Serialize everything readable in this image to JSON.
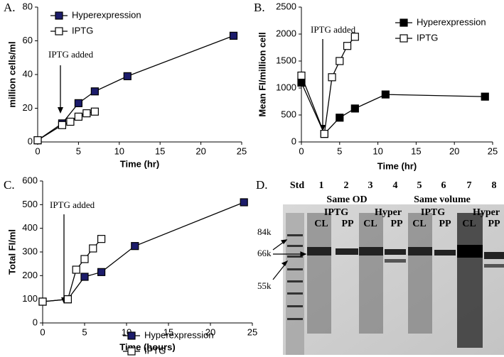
{
  "chart_data": [
    {
      "type": "line",
      "label": "A.",
      "xlabel": "Time (hr)",
      "ylabel": "million cells/ml",
      "annotation": "IPTG added",
      "xlim": [
        0,
        25
      ],
      "xticks": [
        0,
        5,
        10,
        15,
        20,
        25
      ],
      "ylim": [
        0,
        80
      ],
      "yticks": [
        0,
        20,
        40,
        60,
        80
      ],
      "legend": "upper-left",
      "series": [
        {
          "name": "Hyperexpression",
          "color": "#1c1c6b",
          "x": [
            0,
            3,
            5,
            7,
            11,
            24
          ],
          "values": [
            1,
            11,
            23,
            30,
            39,
            63
          ]
        },
        {
          "name": "IPTG",
          "color": "#ffffff",
          "x": [
            0,
            3,
            4,
            5,
            6,
            7
          ],
          "values": [
            1,
            10,
            12,
            15,
            17,
            18
          ]
        }
      ]
    },
    {
      "type": "line",
      "label": "B.",
      "xlabel": "Time (hr)",
      "ylabel": "Mean FI/million cell",
      "annotation": "IPTG added",
      "xlim": [
        0,
        25
      ],
      "xticks": [
        0,
        5,
        10,
        15,
        20,
        25
      ],
      "ylim": [
        0,
        2500
      ],
      "yticks": [
        0,
        500,
        1000,
        1500,
        2000,
        2500
      ],
      "legend": "upper-right",
      "series": [
        {
          "name": "Hyperexpression",
          "color": "#000000",
          "x": [
            0,
            3,
            5,
            7,
            11,
            24
          ],
          "values": [
            1100,
            150,
            450,
            620,
            880,
            840
          ]
        },
        {
          "name": "IPTG",
          "color": "#ffffff",
          "x": [
            0,
            3,
            4,
            5,
            6,
            7
          ],
          "values": [
            1230,
            150,
            1200,
            1500,
            1780,
            1950
          ]
        }
      ]
    },
    {
      "type": "line",
      "label": "C.",
      "xlabel": "Time (hours)",
      "ylabel": "Total FI/ml",
      "annotation": "IPTG added",
      "xlim": [
        0,
        25
      ],
      "xticks": [
        0,
        5,
        10,
        15,
        20,
        25
      ],
      "ylim": [
        0,
        600
      ],
      "yticks": [
        0,
        100,
        200,
        300,
        400,
        500,
        600
      ],
      "legend": "lower-center",
      "series": [
        {
          "name": "Hyperexpression",
          "color": "#1c1c6b",
          "x": [
            0,
            3,
            5,
            7,
            11,
            24
          ],
          "values": [
            90,
            100,
            195,
            215,
            325,
            510
          ]
        },
        {
          "name": "IPTG",
          "color": "#ffffff",
          "x": [
            0,
            3,
            4,
            5,
            6,
            7
          ],
          "values": [
            90,
            100,
            225,
            270,
            315,
            355
          ]
        }
      ]
    }
  ],
  "gel": {
    "label": "D.",
    "lanes": [
      "Std",
      "1",
      "2",
      "3",
      "4",
      "5",
      "6",
      "7",
      "8"
    ],
    "groups": [
      "Same OD",
      "Same volume"
    ],
    "conditions": [
      "IPTG",
      "Hyper",
      "IPTG",
      "Hyper"
    ],
    "fractions": [
      "CL",
      "PP",
      "CL",
      "PP",
      "CL",
      "PP",
      "CL",
      "PP"
    ],
    "markers": [
      "84k",
      "66k",
      "55k"
    ]
  }
}
